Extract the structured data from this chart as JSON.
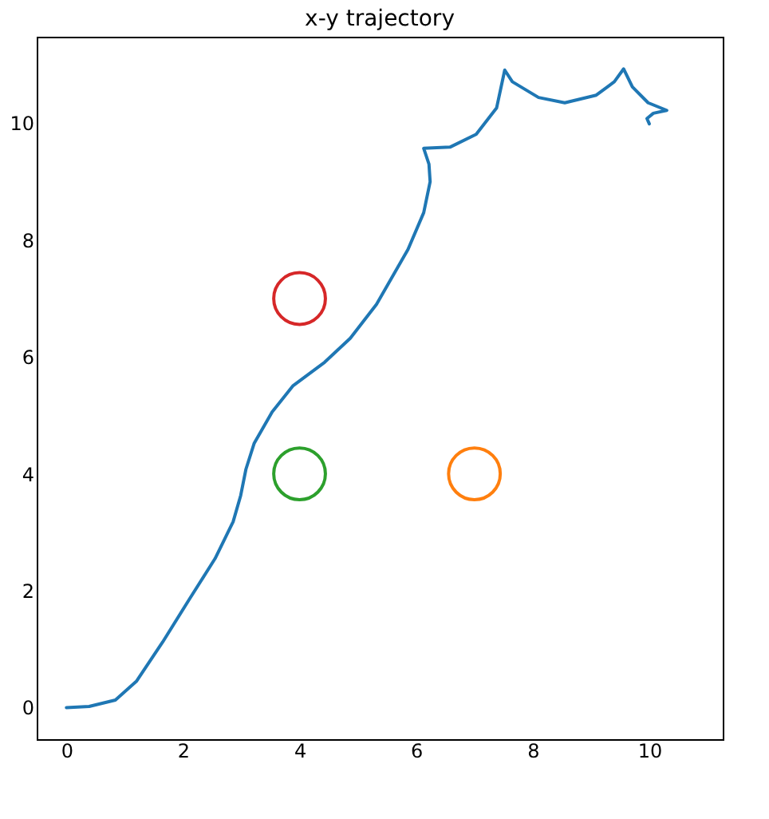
{
  "chart_data": {
    "type": "line",
    "title": "x-y trajectory",
    "xlim": [
      -0.51,
      11.26
    ],
    "ylim": [
      -0.54,
      11.48
    ],
    "xticks": [
      0,
      2,
      4,
      6,
      8,
      10
    ],
    "yticks": [
      0,
      2,
      4,
      6,
      8,
      10
    ],
    "grid": false,
    "line_style": "solid",
    "series": [
      {
        "color": "#1f77b4",
        "marker": "none",
        "x": [
          0,
          0.39,
          0.84,
          1.2,
          1.65,
          2.1,
          2.55,
          2.86,
          2.99,
          3.08,
          3.22,
          3.53,
          3.89,
          4.43,
          4.87,
          5.32,
          5.86,
          6.13,
          6.24,
          6.22,
          6.13,
          6.58,
          7.03,
          7.38,
          7.52,
          7.65,
          8.1,
          8.55,
          9.09,
          9.4,
          9.56,
          9.71,
          9.98,
          10.3,
          10.07,
          9.96,
          10.0
        ],
        "values": [
          0,
          0.02,
          0.13,
          0.45,
          1.12,
          1.84,
          2.55,
          3.18,
          3.63,
          4.08,
          4.52,
          5.06,
          5.51,
          5.91,
          6.32,
          6.9,
          7.84,
          8.47,
          9.0,
          9.3,
          9.57,
          9.59,
          9.81,
          10.26,
          10.91,
          10.71,
          10.44,
          10.35,
          10.48,
          10.71,
          10.93,
          10.62,
          10.35,
          10.22,
          10.17,
          10.08,
          9.99
        ]
      },
      {
        "type": "scatter",
        "marker": "circle",
        "color": "#d62728",
        "x": [
          4
        ],
        "values": [
          7
        ]
      },
      {
        "type": "scatter",
        "marker": "circle",
        "color": "#2ca02c",
        "x": [
          4
        ],
        "values": [
          4
        ]
      },
      {
        "type": "scatter",
        "marker": "circle",
        "color": "#ff7f0e",
        "x": [
          7
        ],
        "values": [
          4
        ]
      }
    ]
  }
}
